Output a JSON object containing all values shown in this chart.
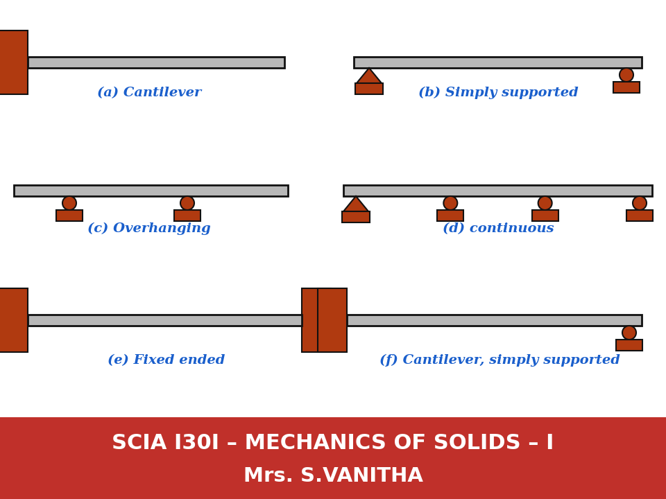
{
  "bg_color": "#ffffff",
  "beam_color": "#b8b8b8",
  "beam_edge": "#111111",
  "support_color": "#b03a10",
  "label_color": "#1a5fcc",
  "footer_bg_top": "#c0302a",
  "footer_bg_bot": "#8b1a1a",
  "footer_text": "#ffffff",
  "title_line1": "SCIA I30I – MECHANICS OF SOLIDS – I",
  "title_line2": "Mrs. S.VANITHA",
  "labels": [
    "(a) Cantilever",
    "(b) Simply supported",
    "(c) Overhanging",
    "(d) continuous",
    "(e) Fixed ended",
    "(f) Cantilever, simply supported"
  ],
  "label_fontsize": 14,
  "title_fontsize": 22
}
